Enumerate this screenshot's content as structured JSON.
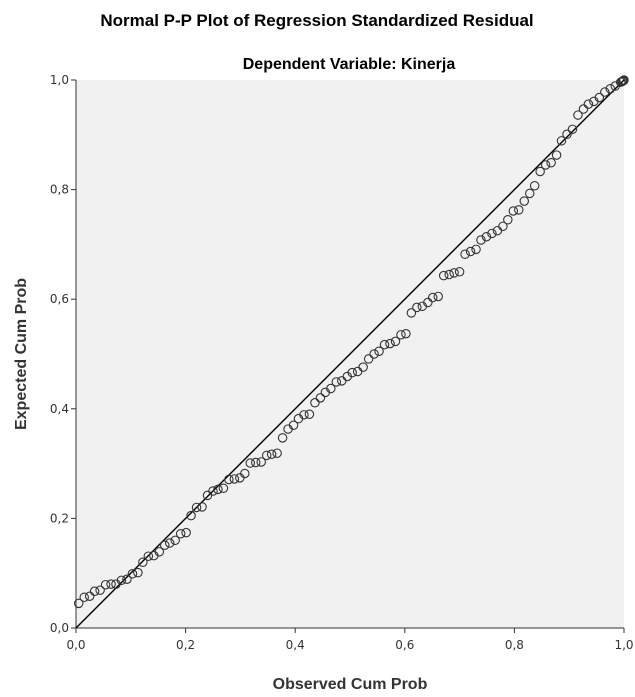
{
  "chart_data": {
    "type": "scatter",
    "title": "Normal P-P Plot of Regression Standardized Residual",
    "subtitle": "Dependent Variable: Kinerja",
    "xlabel": "Observed Cum Prob",
    "ylabel": "Expected Cum Prob",
    "xlim": [
      0,
      1
    ],
    "ylim": [
      0,
      1
    ],
    "x_ticks": [
      "0,0",
      "0,2",
      "0,4",
      "0,6",
      "0,8",
      "1,0"
    ],
    "y_ticks": [
      "0,0",
      "0,2",
      "0,4",
      "0,6",
      "0,8",
      "1,0"
    ],
    "grid": false,
    "reference_line": {
      "from": [
        0,
        0
      ],
      "to": [
        1,
        1
      ]
    },
    "points": [
      [
        0.005,
        0.045
      ],
      [
        0.015,
        0.056
      ],
      [
        0.025,
        0.058
      ],
      [
        0.034,
        0.067
      ],
      [
        0.044,
        0.069
      ],
      [
        0.054,
        0.079
      ],
      [
        0.064,
        0.08
      ],
      [
        0.073,
        0.08
      ],
      [
        0.083,
        0.087
      ],
      [
        0.093,
        0.089
      ],
      [
        0.103,
        0.099
      ],
      [
        0.113,
        0.101
      ],
      [
        0.122,
        0.12
      ],
      [
        0.132,
        0.131
      ],
      [
        0.142,
        0.132
      ],
      [
        0.152,
        0.139
      ],
      [
        0.162,
        0.151
      ],
      [
        0.171,
        0.155
      ],
      [
        0.181,
        0.16
      ],
      [
        0.191,
        0.172
      ],
      [
        0.201,
        0.174
      ],
      [
        0.21,
        0.205
      ],
      [
        0.22,
        0.22
      ],
      [
        0.23,
        0.221
      ],
      [
        0.24,
        0.242
      ],
      [
        0.25,
        0.25
      ],
      [
        0.259,
        0.253
      ],
      [
        0.269,
        0.255
      ],
      [
        0.279,
        0.271
      ],
      [
        0.289,
        0.272
      ],
      [
        0.299,
        0.274
      ],
      [
        0.308,
        0.282
      ],
      [
        0.318,
        0.301
      ],
      [
        0.328,
        0.302
      ],
      [
        0.338,
        0.303
      ],
      [
        0.348,
        0.315
      ],
      [
        0.357,
        0.317
      ],
      [
        0.367,
        0.319
      ],
      [
        0.377,
        0.347
      ],
      [
        0.387,
        0.363
      ],
      [
        0.397,
        0.37
      ],
      [
        0.406,
        0.382
      ],
      [
        0.416,
        0.389
      ],
      [
        0.426,
        0.39
      ],
      [
        0.436,
        0.411
      ],
      [
        0.446,
        0.42
      ],
      [
        0.455,
        0.43
      ],
      [
        0.465,
        0.437
      ],
      [
        0.475,
        0.449
      ],
      [
        0.485,
        0.451
      ],
      [
        0.495,
        0.459
      ],
      [
        0.504,
        0.466
      ],
      [
        0.514,
        0.468
      ],
      [
        0.524,
        0.476
      ],
      [
        0.534,
        0.491
      ],
      [
        0.544,
        0.5
      ],
      [
        0.553,
        0.505
      ],
      [
        0.563,
        0.517
      ],
      [
        0.573,
        0.519
      ],
      [
        0.583,
        0.523
      ],
      [
        0.593,
        0.535
      ],
      [
        0.602,
        0.537
      ],
      [
        0.612,
        0.575
      ],
      [
        0.622,
        0.585
      ],
      [
        0.632,
        0.587
      ],
      [
        0.642,
        0.594
      ],
      [
        0.651,
        0.603
      ],
      [
        0.661,
        0.605
      ],
      [
        0.671,
        0.643
      ],
      [
        0.681,
        0.645
      ],
      [
        0.69,
        0.648
      ],
      [
        0.7,
        0.65
      ],
      [
        0.71,
        0.682
      ],
      [
        0.72,
        0.687
      ],
      [
        0.73,
        0.691
      ],
      [
        0.739,
        0.708
      ],
      [
        0.749,
        0.714
      ],
      [
        0.759,
        0.72
      ],
      [
        0.769,
        0.725
      ],
      [
        0.779,
        0.733
      ],
      [
        0.788,
        0.745
      ],
      [
        0.798,
        0.761
      ],
      [
        0.808,
        0.763
      ],
      [
        0.818,
        0.779
      ],
      [
        0.828,
        0.793
      ],
      [
        0.837,
        0.807
      ],
      [
        0.847,
        0.833
      ],
      [
        0.857,
        0.845
      ],
      [
        0.867,
        0.849
      ],
      [
        0.877,
        0.863
      ],
      [
        0.886,
        0.889
      ],
      [
        0.896,
        0.901
      ],
      [
        0.906,
        0.91
      ],
      [
        0.916,
        0.936
      ],
      [
        0.926,
        0.947
      ],
      [
        0.935,
        0.956
      ],
      [
        0.945,
        0.961
      ],
      [
        0.955,
        0.968
      ],
      [
        0.965,
        0.978
      ],
      [
        0.975,
        0.984
      ],
      [
        0.984,
        0.989
      ],
      [
        0.994,
        0.996
      ],
      [
        0.996,
        0.997
      ],
      [
        0.998,
        0.998
      ],
      [
        0.999,
        0.999
      ],
      [
        1.0,
        1.0
      ]
    ]
  },
  "colors": {
    "background": "#ffffff",
    "plot_area": "#f1f1f1",
    "axis_line": "#333333",
    "marker_stroke": "#333333",
    "reference_line": "#000000"
  }
}
